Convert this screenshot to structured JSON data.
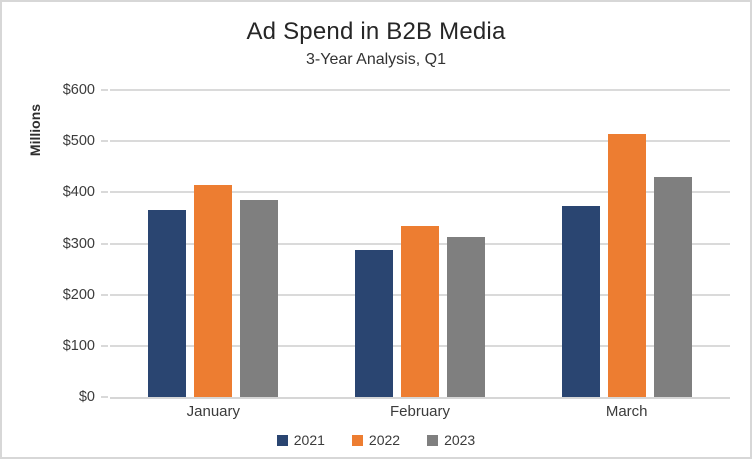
{
  "chart": {
    "title": "Ad Spend in B2B Media",
    "subtitle": "3-Year Analysis, Q1",
    "y_axis_title": "Millions"
  },
  "chart_data": {
    "type": "bar",
    "title": "Ad Spend in B2B Media",
    "subtitle": "3-Year Analysis, Q1",
    "categories": [
      "January",
      "February",
      "March"
    ],
    "series": [
      {
        "name": "2021",
        "color": "#2A4571",
        "values": [
          365,
          287,
          373
        ]
      },
      {
        "name": "2022",
        "color": "#ED7D31",
        "values": [
          415,
          334,
          514
        ]
      },
      {
        "name": "2023",
        "color": "#7F7F7F",
        "values": [
          385,
          312,
          430
        ]
      }
    ],
    "xlabel": "",
    "ylabel": "Millions",
    "ylim": [
      0,
      600
    ],
    "y_tick_step": 100,
    "y_tick_labels": [
      "$0",
      "$100",
      "$200",
      "$300",
      "$400",
      "$500",
      "$600"
    ],
    "grid": true,
    "gridline_color": "#DADADA",
    "background_color": "#FFFFFF",
    "border_color": "#D7D7D7",
    "legend_position": "bottom"
  }
}
